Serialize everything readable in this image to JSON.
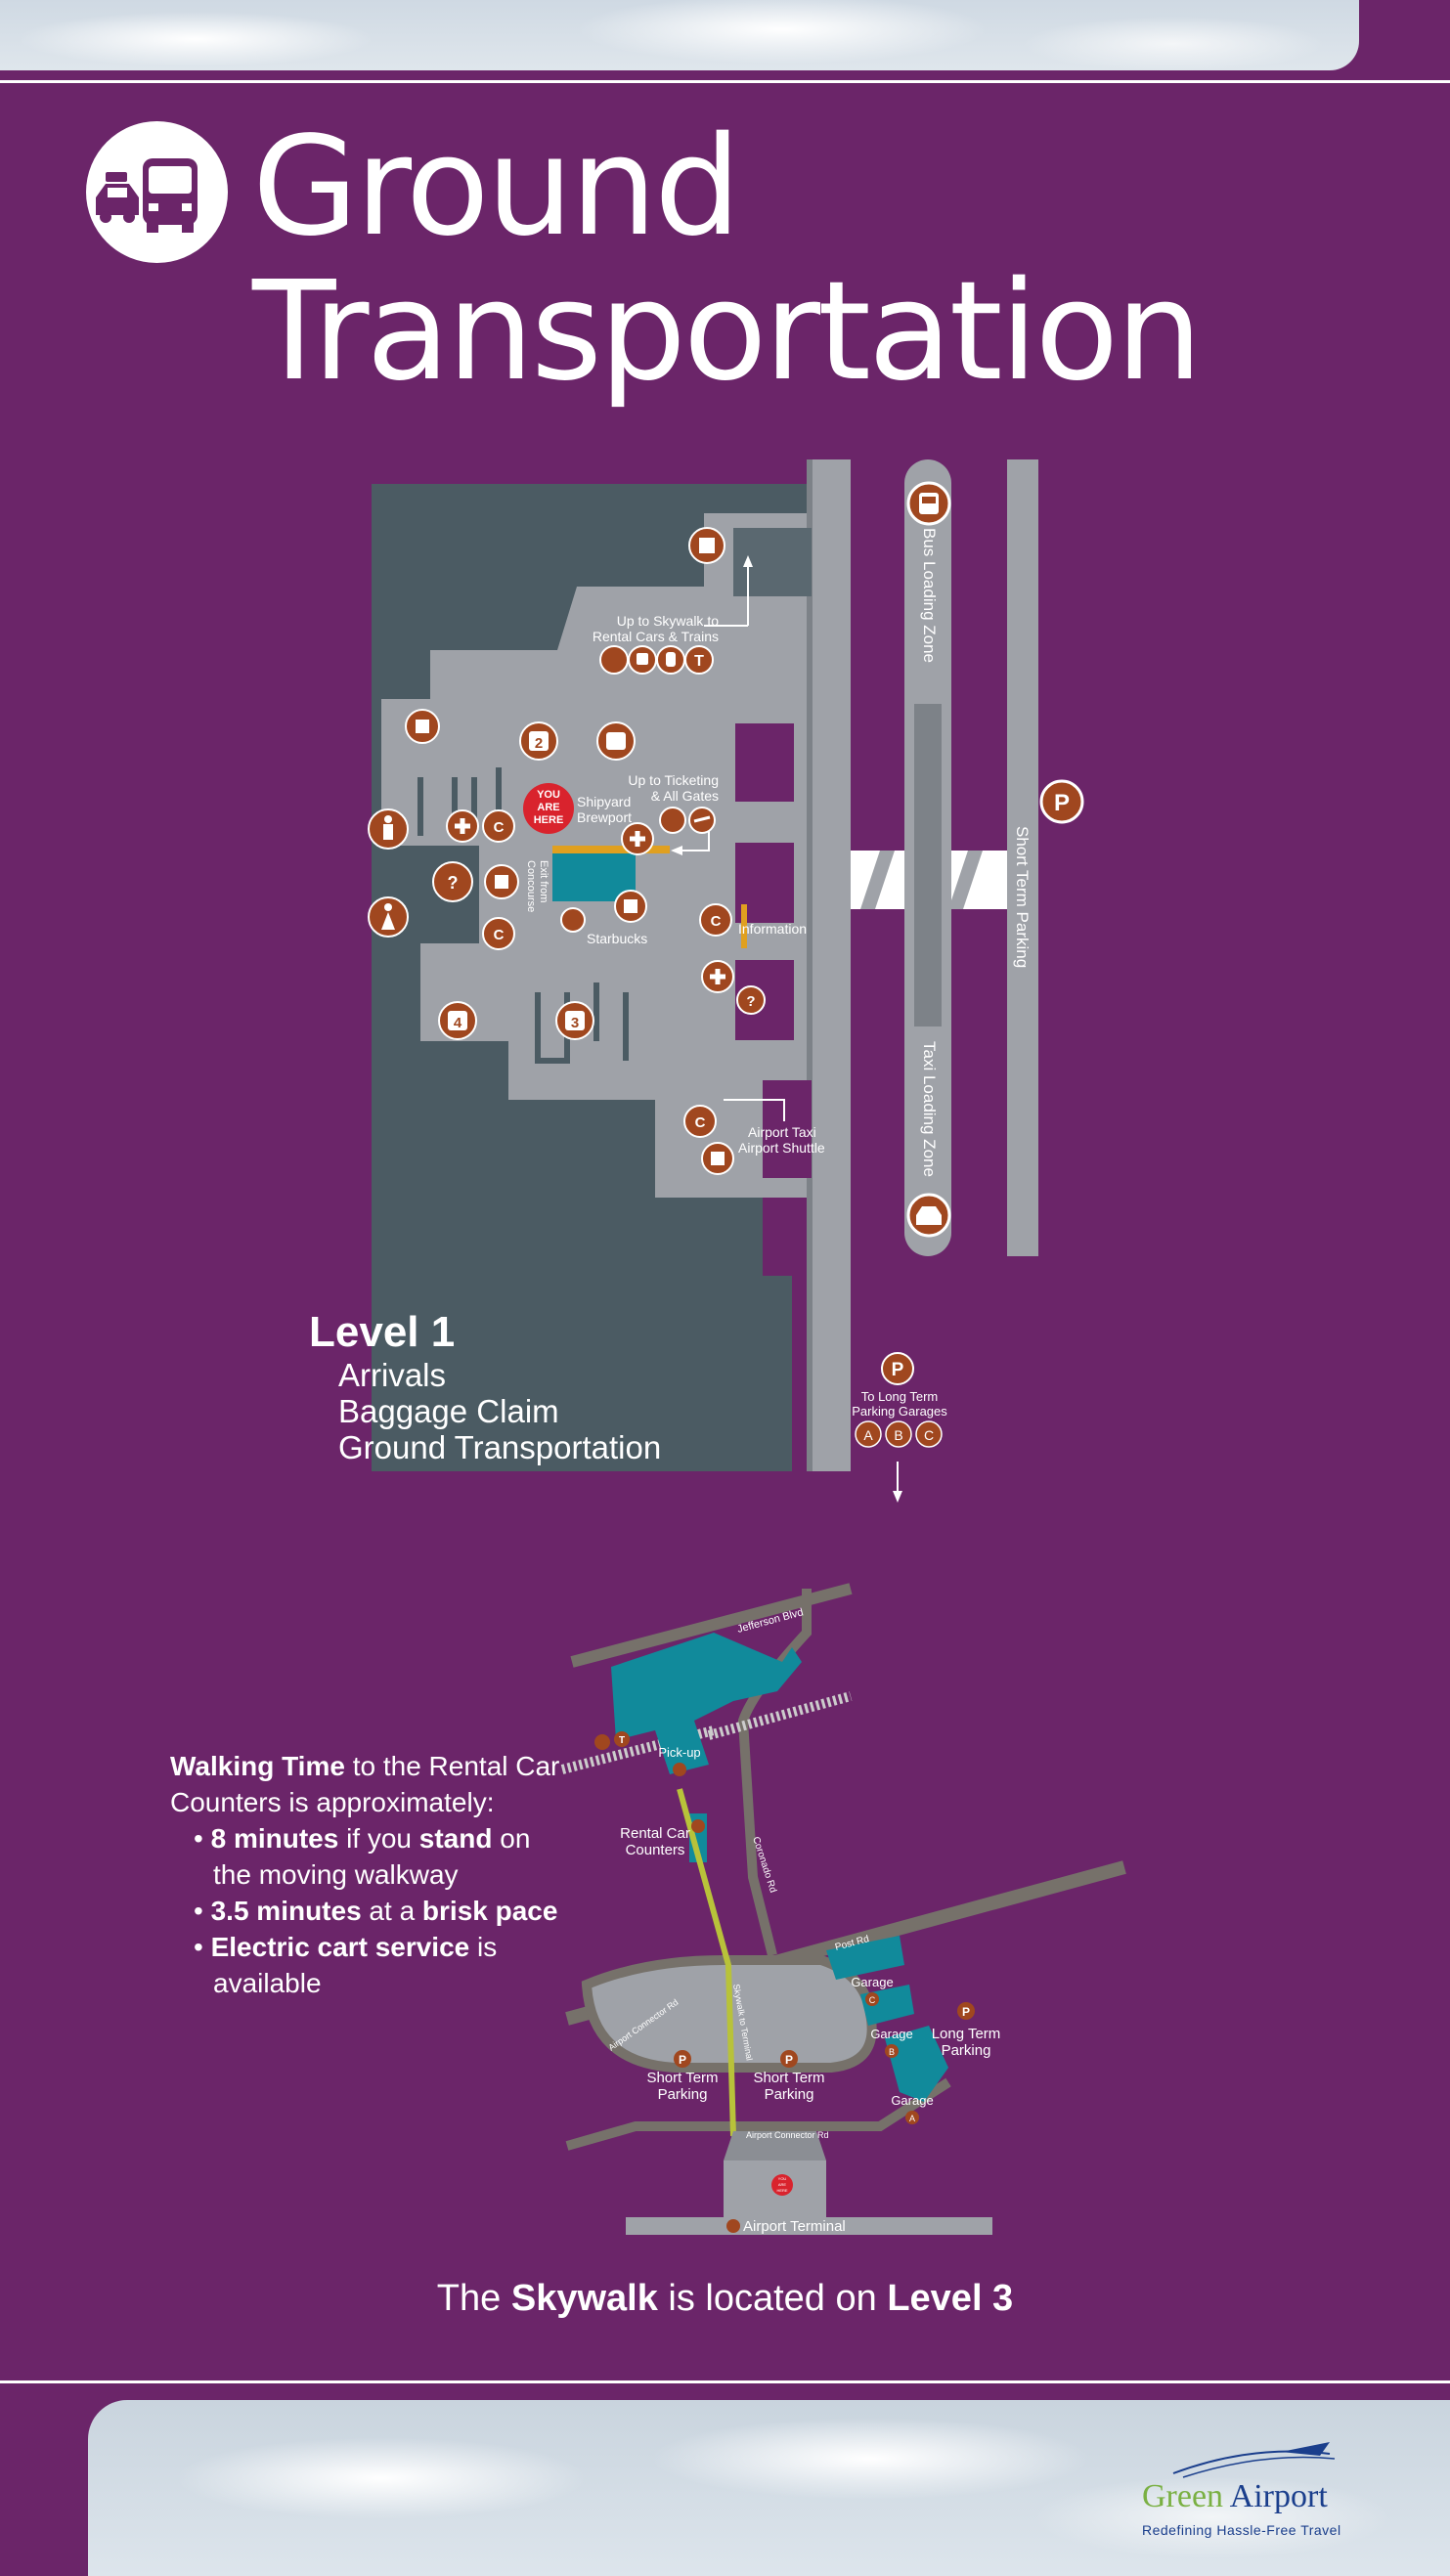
{
  "title": {
    "line1": "Ground",
    "line2": "Transportation"
  },
  "colors": {
    "background": "#6b2569",
    "map_dark": "#4b5b63",
    "map_light": "#9fa2a8",
    "icon": "#a0471f",
    "teal": "#118a9b",
    "you_are_here": "#d9232d"
  },
  "level1_map": {
    "labels": {
      "skywalk": [
        "Up to Skywalk to",
        "Rental Cars & Trains"
      ],
      "ticketing": [
        "Up to Ticketing",
        "& All Gates"
      ],
      "shipyard": [
        "Shipyard",
        "Brewport"
      ],
      "you_are_here": [
        "YOU",
        "ARE",
        "HERE"
      ],
      "exit_concourse": [
        "Exit from",
        "Concourse"
      ],
      "starbucks": "Starbucks",
      "information": "Information",
      "airport_taxi": [
        "Airport Taxi",
        "Airport Shuttle"
      ],
      "bus_zone": "Bus Loading Zone",
      "taxi_zone": "Taxi Loading Zone",
      "short_term": "Short Term Parking",
      "long_term": [
        "To Long Term",
        "Parking Garages"
      ],
      "parking_symbol": "P",
      "garages": [
        "A",
        "B",
        "C"
      ],
      "carousels": [
        "2",
        "4",
        "3"
      ],
      "help_symbol": "?",
      "transit_symbol": "T",
      "phone_symbol": "C"
    }
  },
  "level1": {
    "heading": "Level 1",
    "items": [
      "Arrivals",
      "Baggage Claim",
      "Ground Transportation"
    ]
  },
  "walking": {
    "intro_bold": "Walking Time",
    "intro_rest": " to the Rental Car Counters is approximately:",
    "bullets": [
      {
        "bold": "8 minutes",
        "mid": " if you ",
        "bold2": "stand",
        "rest": " on the moving walkway"
      },
      {
        "bold": "3.5 minutes",
        "mid": " at a ",
        "bold2": "brisk pace",
        "rest": ""
      },
      {
        "bold": "Electric cart service",
        "mid": "",
        "bold2": "",
        "rest": " is available"
      }
    ]
  },
  "overview_map": {
    "labels": {
      "jefferson": "Jefferson Blvd",
      "pickup": "Pick-up",
      "rental": [
        "Rental Car",
        "Counters"
      ],
      "coronado": "Coronado Rd",
      "post": "Post Rd",
      "connector": "Airport Connector Rd",
      "skywalk": "Skywalk to Terminal",
      "garage": "Garage",
      "garage_letters": [
        "C",
        "B",
        "A"
      ],
      "long_term": [
        "Long Term",
        "Parking"
      ],
      "short_term": [
        "Short Term",
        "Parking"
      ],
      "terminal": "Airport Terminal",
      "you_are_here": [
        "YOU",
        "ARE",
        "HERE"
      ],
      "transit_symbol": "T",
      "parking_symbol": "P"
    }
  },
  "skywalk_line": {
    "pre": "The ",
    "b1": "Skywalk",
    "mid": " is located on ",
    "b2": "Level 3"
  },
  "logo": {
    "green": "Green",
    "airport": " Airport",
    "tagline": "Redefining Hassle-Free Travel"
  }
}
